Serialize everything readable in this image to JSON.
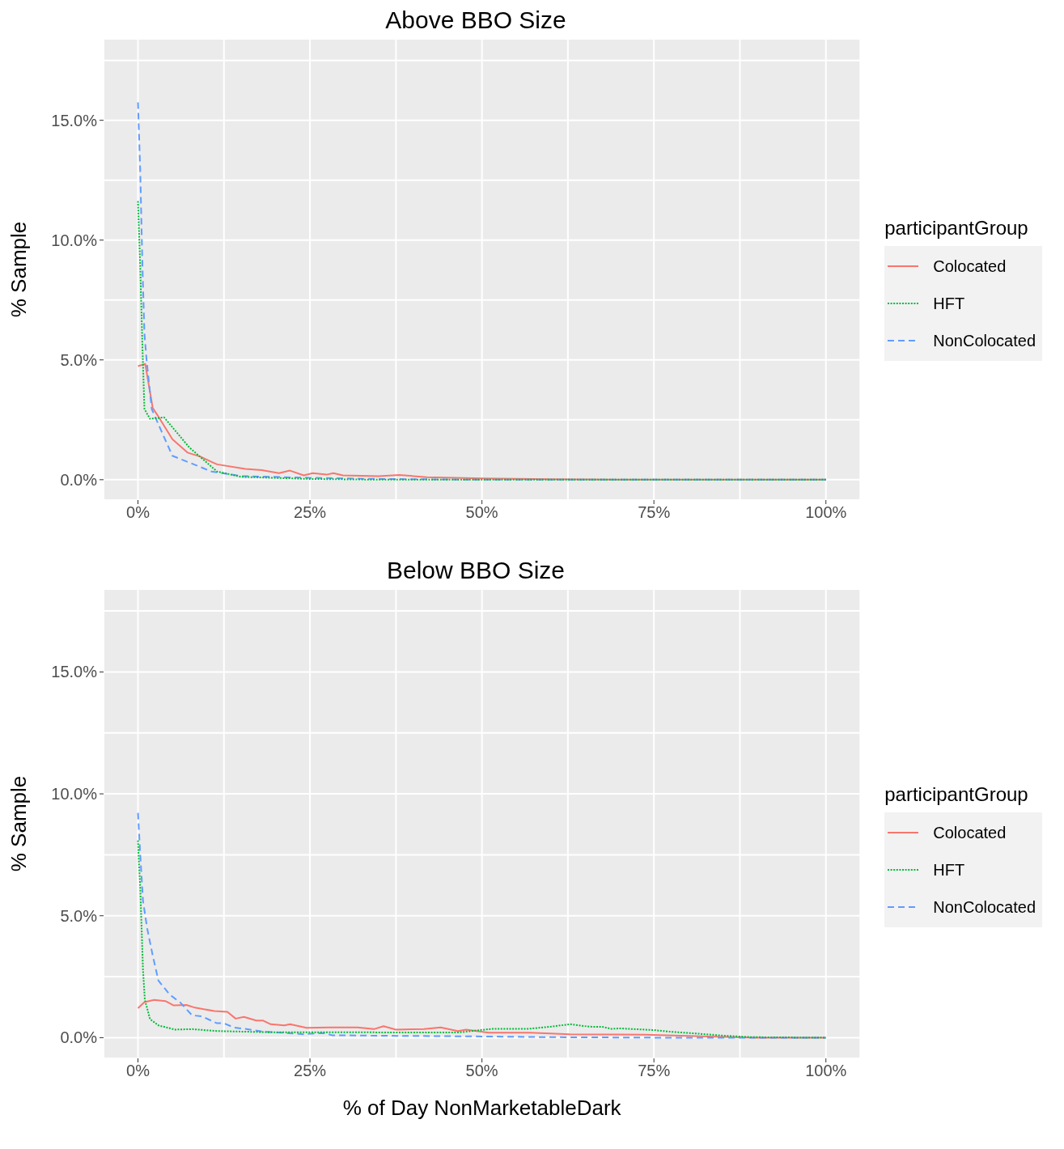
{
  "chart_data": [
    {
      "type": "line",
      "title": "Above BBO Size",
      "ylabel": "% Sample",
      "legend_title": "participantGroup",
      "legend": "right",
      "grid": true,
      "xlim": [
        -5,
        105
      ],
      "ylim": [
        -0.85,
        18.4
      ],
      "xticks": [
        {
          "value": 0,
          "label": "0%"
        },
        {
          "value": 12.5,
          "label": null
        },
        {
          "value": 25,
          "label": "25%"
        },
        {
          "value": 37.5,
          "label": null
        },
        {
          "value": 50,
          "label": "50%"
        },
        {
          "value": 62.5,
          "label": null
        },
        {
          "value": 75,
          "label": "75%"
        },
        {
          "value": 87.5,
          "label": null
        },
        {
          "value": 100,
          "label": "100%"
        }
      ],
      "yticks": [
        {
          "value": 0,
          "label": "0.0%"
        },
        {
          "value": 2.5,
          "label": null
        },
        {
          "value": 5,
          "label": "5.0%"
        },
        {
          "value": 7.5,
          "label": null
        },
        {
          "value": 10,
          "label": "10.0%"
        },
        {
          "value": 12.5,
          "label": null
        },
        {
          "value": 15,
          "label": "15.0%"
        },
        {
          "value": 17.5,
          "label": null
        }
      ],
      "series": [
        {
          "name": "Colocated",
          "color": "#f8766d",
          "line_style": "solid",
          "x": [
            0,
            1.06,
            2.15,
            2.8,
            5,
            7.2,
            9.1,
            10.7,
            11.5,
            15.6,
            18,
            20.5,
            22.1,
            24.1,
            25.4,
            27.4,
            28.4,
            29.8,
            35,
            38,
            42,
            50,
            60,
            70,
            80,
            90,
            100
          ],
          "values": [
            4.74,
            4.83,
            2.99,
            2.71,
            1.69,
            1.13,
            0.96,
            0.74,
            0.64,
            0.45,
            0.4,
            0.27,
            0.38,
            0.18,
            0.27,
            0.21,
            0.27,
            0.18,
            0.15,
            0.2,
            0.1,
            0.05,
            0.02,
            0,
            0,
            0,
            0
          ]
        },
        {
          "name": "HFT",
          "color": "#00ba38",
          "line_style": "dotted",
          "x": [
            0,
            0.33,
            0.65,
            0.94,
            1.75,
            3.8,
            7.45,
            11.5,
            15,
            25,
            35,
            50,
            75,
            100
          ],
          "values": [
            11.63,
            8.9,
            5.53,
            2.95,
            2.54,
            2.6,
            1.35,
            0.34,
            0.12,
            0.03,
            0,
            0,
            0,
            0
          ]
        },
        {
          "name": "NonColocated",
          "color": "#619cff",
          "line_style": "dashed",
          "x": [
            0,
            0.33,
            0.65,
            0.94,
            1.26,
            2,
            3.4,
            5,
            10.7,
            15,
            25,
            35,
            50,
            75,
            100
          ],
          "values": [
            15.75,
            12.9,
            8.9,
            6.1,
            4.98,
            2.95,
            2.03,
            1,
            0.34,
            0.15,
            0.08,
            0.03,
            0,
            0,
            0
          ]
        }
      ]
    },
    {
      "type": "line",
      "title": "Below BBO Size",
      "xlabel": "% of Day NonMarketableDark",
      "ylabel": "% Sample",
      "legend_title": "participantGroup",
      "legend": "right",
      "grid": true,
      "xlim": [
        -5,
        105
      ],
      "ylim": [
        -0.85,
        18.4
      ],
      "xticks": [
        {
          "value": 0,
          "label": "0%"
        },
        {
          "value": 12.5,
          "label": null
        },
        {
          "value": 25,
          "label": "25%"
        },
        {
          "value": 37.5,
          "label": null
        },
        {
          "value": 50,
          "label": "50%"
        },
        {
          "value": 62.5,
          "label": null
        },
        {
          "value": 75,
          "label": "75%"
        },
        {
          "value": 87.5,
          "label": null
        },
        {
          "value": 100,
          "label": "100%"
        }
      ],
      "yticks": [
        {
          "value": 0,
          "label": "0.0%"
        },
        {
          "value": 2.5,
          "label": null
        },
        {
          "value": 5,
          "label": "5.0%"
        },
        {
          "value": 7.5,
          "label": null
        },
        {
          "value": 10,
          "label": "10.0%"
        },
        {
          "value": 12.5,
          "label": null
        },
        {
          "value": 15,
          "label": "15.0%"
        },
        {
          "value": 17.5,
          "label": null
        }
      ],
      "series": [
        {
          "name": "Colocated",
          "color": "#f8766d",
          "line_style": "solid",
          "x": [
            0,
            0.94,
            2.36,
            3.99,
            5.2,
            7.05,
            8.3,
            11.1,
            13,
            14.2,
            15.4,
            17.2,
            18.2,
            19.3,
            21.3,
            22.1,
            24.5,
            27.8,
            31.9,
            34.3,
            35.7,
            37.5,
            41.6,
            44,
            46.5,
            47.7,
            51,
            57,
            62.8,
            73.8,
            83,
            90,
            100
          ],
          "values": [
            1.21,
            1.46,
            1.55,
            1.5,
            1.32,
            1.34,
            1.23,
            1.09,
            1.06,
            0.78,
            0.85,
            0.7,
            0.7,
            0.55,
            0.5,
            0.55,
            0.4,
            0.42,
            0.42,
            0.35,
            0.47,
            0.33,
            0.35,
            0.42,
            0.27,
            0.33,
            0.2,
            0.2,
            0.14,
            0.12,
            0.05,
            0,
            0
          ]
        },
        {
          "name": "HFT",
          "color": "#00ba38",
          "line_style": "dotted",
          "x": [
            0,
            0.12,
            0.33,
            0.53,
            0.73,
            1,
            1.75,
            3,
            5.4,
            7.85,
            11.5,
            19.7,
            27,
            46.5,
            51.4,
            56.7,
            60,
            62.8,
            65.6,
            67.6,
            68.8,
            70,
            75,
            77.5,
            81.1,
            85.2,
            89.2,
            100
          ],
          "values": [
            8.09,
            7.3,
            6.17,
            4.48,
            2.79,
            1.55,
            0.76,
            0.5,
            0.33,
            0.35,
            0.27,
            0.22,
            0.22,
            0.21,
            0.36,
            0.36,
            0.45,
            0.55,
            0.45,
            0.44,
            0.36,
            0.38,
            0.31,
            0.24,
            0.17,
            0.08,
            0.02,
            0
          ]
        },
        {
          "name": "NonColocated",
          "color": "#619cff",
          "line_style": "dashed",
          "x": [
            0,
            0.33,
            0.73,
            1.34,
            2.16,
            2.97,
            4.6,
            6.2,
            7.85,
            9.3,
            11.5,
            12.4,
            13.9,
            15.6,
            18,
            21.7,
            24.1,
            27,
            28.2,
            35,
            50,
            60,
            75,
            100
          ],
          "values": [
            9.22,
            7.53,
            5.61,
            4.48,
            3.35,
            2.34,
            1.77,
            1.43,
            0.92,
            0.87,
            0.59,
            0.6,
            0.42,
            0.36,
            0.25,
            0.19,
            0.14,
            0.19,
            0.1,
            0.08,
            0.05,
            0.02,
            0,
            0
          ]
        }
      ]
    }
  ]
}
